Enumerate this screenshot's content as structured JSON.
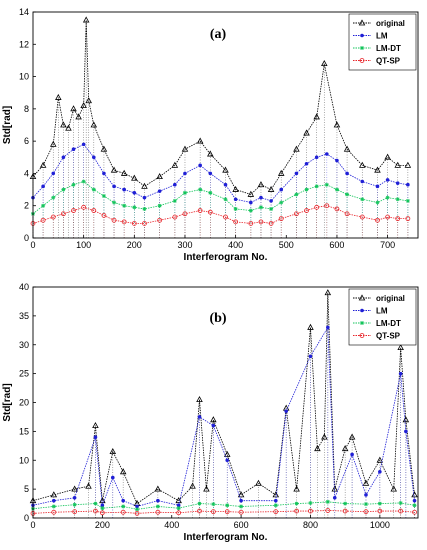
{
  "chart_data": [
    {
      "type": "line",
      "panel_label": "(a)",
      "title": "",
      "xlabel": "Interferogram No.",
      "ylabel": "Std[rad]",
      "xlim": [
        0,
        760
      ],
      "ylim": [
        0,
        14
      ],
      "xticks": [
        0,
        100,
        200,
        300,
        400,
        500,
        600,
        700
      ],
      "yticks": [
        0,
        2,
        4,
        6,
        8,
        10,
        12,
        14
      ],
      "legend_position": "top-right",
      "grid": false,
      "series": [
        {
          "name": "original",
          "color": "#000000",
          "marker": "triangle",
          "values": [
            [
              0,
              3.8
            ],
            [
              20,
              4.5
            ],
            [
              40,
              5.8
            ],
            [
              50,
              8.7
            ],
            [
              60,
              7.0
            ],
            [
              70,
              6.8
            ],
            [
              80,
              8.0
            ],
            [
              90,
              7.5
            ],
            [
              100,
              8.2
            ],
            [
              105,
              13.5
            ],
            [
              110,
              8.5
            ],
            [
              120,
              7.0
            ],
            [
              140,
              5.5
            ],
            [
              160,
              4.2
            ],
            [
              180,
              4.0
            ],
            [
              200,
              3.7
            ],
            [
              220,
              3.2
            ],
            [
              250,
              3.8
            ],
            [
              280,
              4.5
            ],
            [
              300,
              5.5
            ],
            [
              330,
              6.0
            ],
            [
              350,
              5.2
            ],
            [
              380,
              4.2
            ],
            [
              400,
              3.0
            ],
            [
              430,
              2.7
            ],
            [
              450,
              3.3
            ],
            [
              470,
              3.0
            ],
            [
              490,
              4.0
            ],
            [
              520,
              5.5
            ],
            [
              540,
              6.5
            ],
            [
              560,
              7.5
            ],
            [
              575,
              10.8
            ],
            [
              600,
              7.0
            ],
            [
              620,
              5.5
            ],
            [
              650,
              4.5
            ],
            [
              680,
              4.2
            ],
            [
              700,
              5.0
            ],
            [
              720,
              4.5
            ],
            [
              740,
              4.5
            ]
          ]
        },
        {
          "name": "LM",
          "color": "#1f1fd6",
          "marker": "dot",
          "values": [
            [
              0,
              2.5
            ],
            [
              20,
              3.2
            ],
            [
              40,
              4.0
            ],
            [
              60,
              5.0
            ],
            [
              80,
              5.5
            ],
            [
              100,
              5.8
            ],
            [
              120,
              5.0
            ],
            [
              140,
              4.0
            ],
            [
              160,
              3.2
            ],
            [
              180,
              3.0
            ],
            [
              200,
              2.8
            ],
            [
              220,
              2.5
            ],
            [
              250,
              2.9
            ],
            [
              280,
              3.3
            ],
            [
              300,
              4.0
            ],
            [
              330,
              4.5
            ],
            [
              350,
              4.0
            ],
            [
              380,
              3.3
            ],
            [
              400,
              2.4
            ],
            [
              430,
              2.2
            ],
            [
              450,
              2.5
            ],
            [
              470,
              2.3
            ],
            [
              490,
              3.0
            ],
            [
              520,
              4.0
            ],
            [
              540,
              4.6
            ],
            [
              560,
              5.0
            ],
            [
              580,
              5.2
            ],
            [
              600,
              4.8
            ],
            [
              620,
              4.0
            ],
            [
              650,
              3.5
            ],
            [
              680,
              3.2
            ],
            [
              700,
              3.6
            ],
            [
              720,
              3.4
            ],
            [
              740,
              3.3
            ]
          ]
        },
        {
          "name": "LM-DT",
          "color": "#12c45a",
          "marker": "star",
          "values": [
            [
              0,
              1.5
            ],
            [
              20,
              2.0
            ],
            [
              40,
              2.5
            ],
            [
              60,
              3.0
            ],
            [
              80,
              3.3
            ],
            [
              100,
              3.5
            ],
            [
              120,
              3.0
            ],
            [
              140,
              2.6
            ],
            [
              160,
              2.2
            ],
            [
              180,
              2.0
            ],
            [
              200,
              1.9
            ],
            [
              220,
              1.8
            ],
            [
              250,
              2.0
            ],
            [
              280,
              2.3
            ],
            [
              300,
              2.8
            ],
            [
              330,
              3.0
            ],
            [
              350,
              2.8
            ],
            [
              380,
              2.4
            ],
            [
              400,
              1.8
            ],
            [
              430,
              1.7
            ],
            [
              450,
              1.9
            ],
            [
              470,
              1.8
            ],
            [
              490,
              2.2
            ],
            [
              520,
              2.7
            ],
            [
              540,
              3.0
            ],
            [
              560,
              3.2
            ],
            [
              580,
              3.3
            ],
            [
              600,
              3.0
            ],
            [
              620,
              2.7
            ],
            [
              650,
              2.4
            ],
            [
              680,
              2.2
            ],
            [
              700,
              2.5
            ],
            [
              720,
              2.4
            ],
            [
              740,
              2.3
            ]
          ]
        },
        {
          "name": "QT-SP",
          "color": "#e8242a",
          "marker": "circle",
          "values": [
            [
              0,
              0.9
            ],
            [
              20,
              1.1
            ],
            [
              40,
              1.3
            ],
            [
              60,
              1.5
            ],
            [
              80,
              1.7
            ],
            [
              100,
              1.9
            ],
            [
              120,
              1.7
            ],
            [
              140,
              1.4
            ],
            [
              160,
              1.1
            ],
            [
              180,
              1.0
            ],
            [
              200,
              0.9
            ],
            [
              220,
              0.9
            ],
            [
              250,
              1.1
            ],
            [
              280,
              1.3
            ],
            [
              300,
              1.5
            ],
            [
              330,
              1.7
            ],
            [
              350,
              1.6
            ],
            [
              380,
              1.3
            ],
            [
              400,
              1.0
            ],
            [
              430,
              0.9
            ],
            [
              450,
              1.0
            ],
            [
              470,
              0.9
            ],
            [
              490,
              1.2
            ],
            [
              520,
              1.5
            ],
            [
              540,
              1.7
            ],
            [
              560,
              1.9
            ],
            [
              580,
              2.0
            ],
            [
              600,
              1.8
            ],
            [
              620,
              1.5
            ],
            [
              650,
              1.3
            ],
            [
              680,
              1.1
            ],
            [
              700,
              1.3
            ],
            [
              720,
              1.2
            ],
            [
              740,
              1.2
            ]
          ]
        }
      ]
    },
    {
      "type": "line",
      "panel_label": "(b)",
      "title": "",
      "xlabel": "Interferogram No.",
      "ylabel": "Std[rad]",
      "xlim": [
        0,
        1110
      ],
      "ylim": [
        0,
        40
      ],
      "xticks": [
        0,
        200,
        400,
        600,
        800,
        1000
      ],
      "yticks": [
        0,
        5,
        10,
        15,
        20,
        25,
        30,
        35,
        40
      ],
      "legend_position": "top-right",
      "grid": false,
      "series": [
        {
          "name": "original",
          "color": "#000000",
          "marker": "triangle",
          "values": [
            [
              0,
              3.0
            ],
            [
              60,
              4.0
            ],
            [
              120,
              5.0
            ],
            [
              160,
              5.5
            ],
            [
              180,
              16.0
            ],
            [
              200,
              3.0
            ],
            [
              230,
              11.5
            ],
            [
              260,
              8.0
            ],
            [
              300,
              2.5
            ],
            [
              360,
              5.0
            ],
            [
              420,
              3.0
            ],
            [
              460,
              5.5
            ],
            [
              480,
              20.5
            ],
            [
              500,
              5.0
            ],
            [
              520,
              17.0
            ],
            [
              560,
              11.0
            ],
            [
              600,
              4.0
            ],
            [
              650,
              6.0
            ],
            [
              700,
              4.0
            ],
            [
              730,
              19.0
            ],
            [
              760,
              5.0
            ],
            [
              800,
              33.0
            ],
            [
              820,
              12.0
            ],
            [
              840,
              14.0
            ],
            [
              850,
              39.0
            ],
            [
              870,
              5.0
            ],
            [
              900,
              12.0
            ],
            [
              920,
              14.0
            ],
            [
              960,
              6.0
            ],
            [
              1000,
              10.0
            ],
            [
              1040,
              5.0
            ],
            [
              1060,
              29.5
            ],
            [
              1075,
              17.0
            ],
            [
              1100,
              4.0
            ]
          ]
        },
        {
          "name": "LM",
          "color": "#1f1fd6",
          "marker": "dot",
          "values": [
            [
              0,
              2.2
            ],
            [
              60,
              3.0
            ],
            [
              120,
              3.5
            ],
            [
              180,
              14.0
            ],
            [
              200,
              2.2
            ],
            [
              230,
              7.0
            ],
            [
              260,
              3.0
            ],
            [
              300,
              2.0
            ],
            [
              360,
              3.0
            ],
            [
              420,
              2.2
            ],
            [
              480,
              17.5
            ],
            [
              520,
              16.0
            ],
            [
              560,
              10.0
            ],
            [
              600,
              3.0
            ],
            [
              700,
              3.0
            ],
            [
              730,
              18.5
            ],
            [
              800,
              28.0
            ],
            [
              850,
              33.0
            ],
            [
              870,
              3.5
            ],
            [
              920,
              11.0
            ],
            [
              960,
              4.0
            ],
            [
              1000,
              8.0
            ],
            [
              1060,
              25.0
            ],
            [
              1075,
              15.0
            ],
            [
              1100,
              3.0
            ]
          ]
        },
        {
          "name": "LM-DT",
          "color": "#12c45a",
          "marker": "star",
          "values": [
            [
              0,
              1.6
            ],
            [
              60,
              2.0
            ],
            [
              120,
              2.3
            ],
            [
              180,
              2.5
            ],
            [
              200,
              1.7
            ],
            [
              260,
              2.0
            ],
            [
              300,
              1.5
            ],
            [
              360,
              2.0
            ],
            [
              420,
              1.7
            ],
            [
              480,
              2.5
            ],
            [
              520,
              2.4
            ],
            [
              560,
              2.2
            ],
            [
              600,
              2.0
            ],
            [
              700,
              2.2
            ],
            [
              760,
              2.5
            ],
            [
              800,
              2.6
            ],
            [
              850,
              2.8
            ],
            [
              900,
              2.5
            ],
            [
              960,
              2.4
            ],
            [
              1000,
              2.5
            ],
            [
              1060,
              2.6
            ],
            [
              1100,
              2.2
            ]
          ]
        },
        {
          "name": "QT-SP",
          "color": "#e8242a",
          "marker": "circle",
          "values": [
            [
              0,
              0.8
            ],
            [
              60,
              1.0
            ],
            [
              120,
              1.1
            ],
            [
              180,
              1.2
            ],
            [
              200,
              0.9
            ],
            [
              260,
              1.0
            ],
            [
              300,
              0.8
            ],
            [
              360,
              1.0
            ],
            [
              420,
              0.9
            ],
            [
              480,
              1.2
            ],
            [
              520,
              1.1
            ],
            [
              560,
              1.1
            ],
            [
              600,
              1.0
            ],
            [
              700,
              1.1
            ],
            [
              760,
              1.2
            ],
            [
              800,
              1.2
            ],
            [
              850,
              1.3
            ],
            [
              900,
              1.2
            ],
            [
              960,
              1.1
            ],
            [
              1000,
              1.2
            ],
            [
              1060,
              1.2
            ],
            [
              1100,
              1.0
            ]
          ]
        }
      ]
    }
  ]
}
